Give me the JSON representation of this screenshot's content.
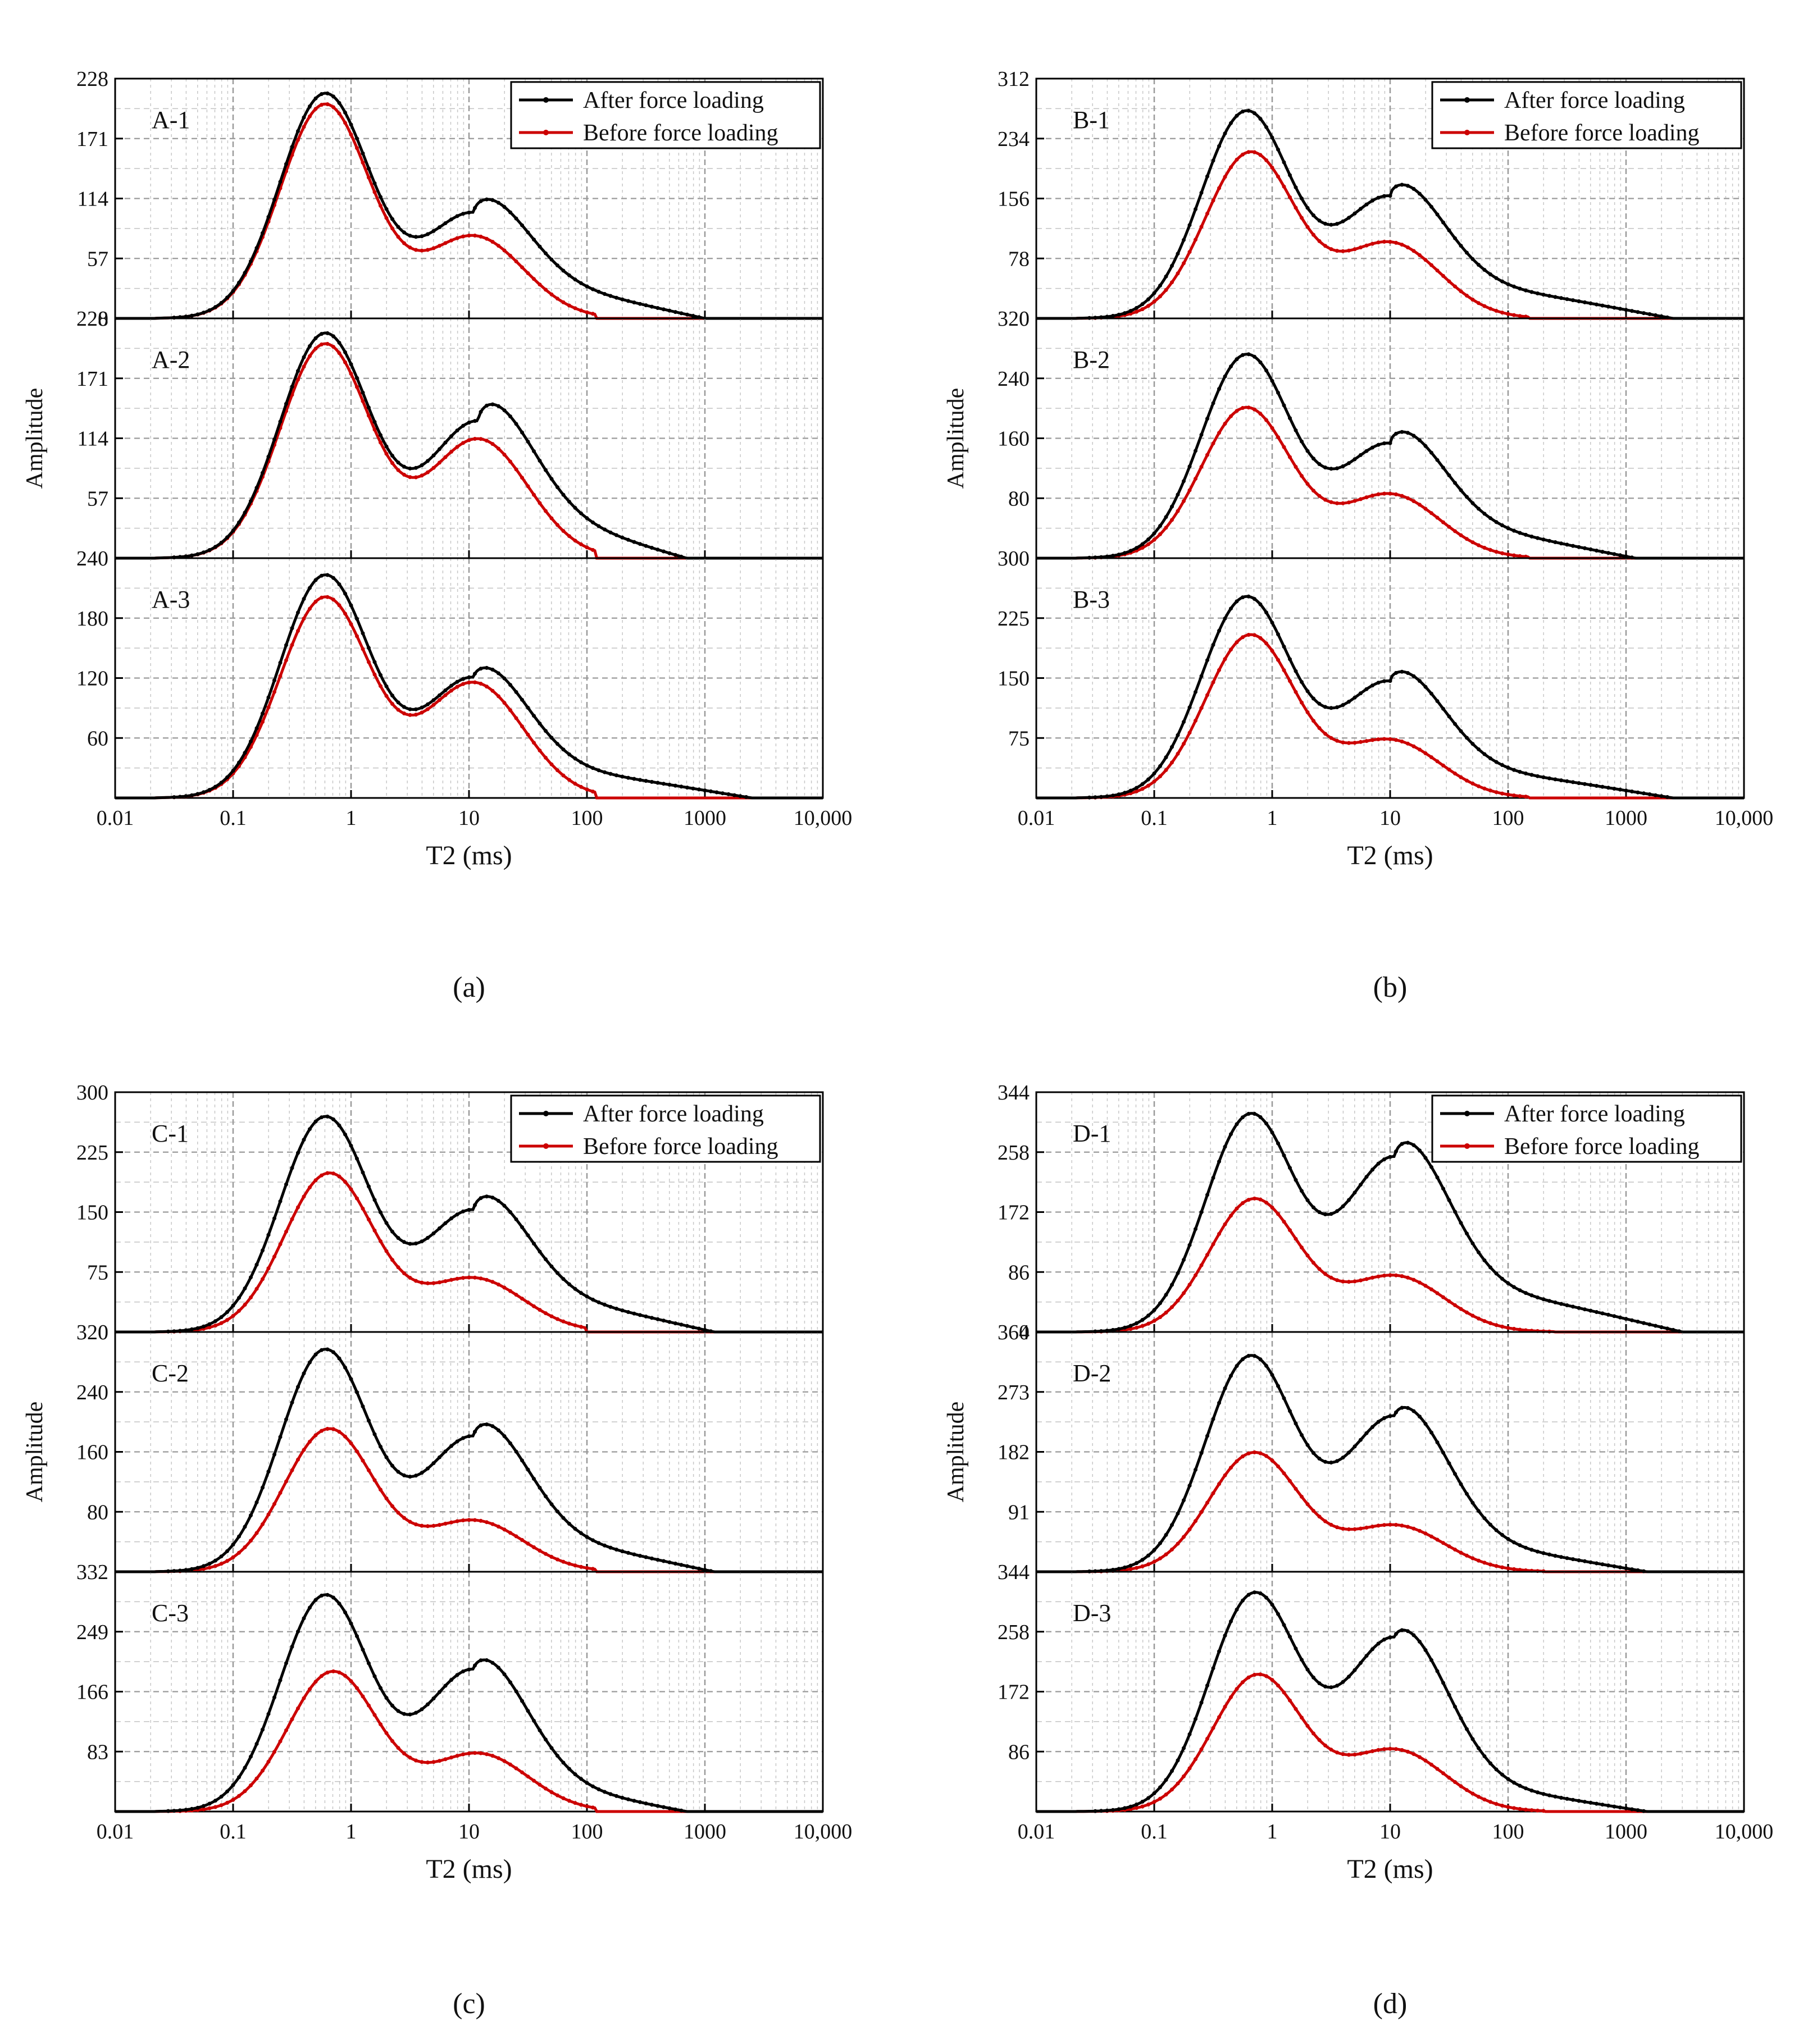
{
  "figure": {
    "x_axis_label": "T2 (ms)",
    "y_axis_label": "Amplitude",
    "x_tick_labels": [
      "0.01",
      "0.1",
      "1",
      "10",
      "100",
      "1000",
      "10,000"
    ],
    "legend": {
      "after": "After force loading",
      "before": "Before force loading"
    },
    "colors": {
      "after": "#000000",
      "before": "#cc0000",
      "grid": "#9a9a9a",
      "axis": "#000000"
    }
  },
  "chart_data": [
    {
      "type": "line",
      "group": "a",
      "caption": "(a)",
      "x_scale": "log",
      "xlim": [
        0.01,
        10000
      ],
      "xlabel": "T2 (ms)",
      "ylabel": "Amplitude",
      "subplots": [
        {
          "name": "A-1",
          "ylim": [
            0,
            228
          ],
          "yticks": [
            "0",
            "57",
            "114",
            "171",
            "228"
          ],
          "series": [
            {
              "name": "After force loading",
              "peak1": {
                "t2": 0.6,
                "amp": 213
              },
              "peak2": {
                "t2": 11,
                "amp": 100
              },
              "tail_amp": 30,
              "tail_end": 1000
            },
            {
              "name": "Before force loading",
              "peak1": {
                "t2": 0.6,
                "amp": 203
              },
              "peak2": {
                "t2": 11,
                "amp": 78
              },
              "tail_amp": 0,
              "tail_end": 120
            }
          ]
        },
        {
          "name": "A-2",
          "ylim": [
            0,
            228
          ],
          "yticks": [
            "0",
            "57",
            "114",
            "171",
            "228"
          ],
          "series": [
            {
              "name": "After force loading",
              "peak1": {
                "t2": 0.6,
                "amp": 213
              },
              "peak2": {
                "t2": 12,
                "amp": 130
              },
              "tail_amp": 36,
              "tail_end": 700
            },
            {
              "name": "Before force loading",
              "peak1": {
                "t2": 0.6,
                "amp": 203
              },
              "peak2": {
                "t2": 12,
                "amp": 113
              },
              "tail_amp": 0,
              "tail_end": 120
            }
          ]
        },
        {
          "name": "A-3",
          "ylim": [
            0,
            240
          ],
          "yticks": [
            "0",
            "60",
            "120",
            "180",
            "240"
          ],
          "series": [
            {
              "name": "After force loading",
              "peak1": {
                "t2": 0.6,
                "amp": 222
              },
              "peak2": {
                "t2": 11,
                "amp": 120
              },
              "tail_amp": 28,
              "tail_end": 2500
            },
            {
              "name": "Before force loading",
              "peak1": {
                "t2": 0.6,
                "amp": 200
              },
              "peak2": {
                "t2": 11,
                "amp": 115
              },
              "tail_amp": 0,
              "tail_end": 120
            }
          ]
        }
      ]
    },
    {
      "type": "line",
      "group": "b",
      "caption": "(b)",
      "x_scale": "log",
      "xlim": [
        0.01,
        10000
      ],
      "xlabel": "T2 (ms)",
      "ylabel": "Amplitude",
      "subplots": [
        {
          "name": "B-1",
          "ylim": [
            0,
            312
          ],
          "yticks": [
            "0",
            "78",
            "156",
            "234",
            "312"
          ],
          "series": [
            {
              "name": "After force loading",
              "peak1": {
                "t2": 0.6,
                "amp": 268
              },
              "peak2": {
                "t2": 10,
                "amp": 158
              },
              "tail_amp": 42,
              "tail_end": 2500
            },
            {
              "name": "Before force loading",
              "peak1": {
                "t2": 0.65,
                "amp": 215
              },
              "peak2": {
                "t2": 10,
                "amp": 98
              },
              "tail_amp": 0,
              "tail_end": 150
            }
          ]
        },
        {
          "name": "B-2",
          "ylim": [
            0,
            320
          ],
          "yticks": [
            "0",
            "80",
            "160",
            "240",
            "320"
          ],
          "series": [
            {
              "name": "After force loading",
              "peak1": {
                "t2": 0.6,
                "amp": 270
              },
              "peak2": {
                "t2": 10,
                "amp": 152
              },
              "tail_amp": 40,
              "tail_end": 1200
            },
            {
              "name": "Before force loading",
              "peak1": {
                "t2": 0.6,
                "amp": 200
              },
              "peak2": {
                "t2": 10,
                "amp": 85
              },
              "tail_amp": 0,
              "tail_end": 150
            }
          ]
        },
        {
          "name": "B-3",
          "ylim": [
            0,
            300
          ],
          "yticks": [
            "0",
            "75",
            "150",
            "225",
            "300"
          ],
          "series": [
            {
              "name": "After force loading",
              "peak1": {
                "t2": 0.6,
                "amp": 250
              },
              "peak2": {
                "t2": 10,
                "amp": 145
              },
              "tail_amp": 35,
              "tail_end": 2500
            },
            {
              "name": "Before force loading",
              "peak1": {
                "t2": 0.65,
                "amp": 203
              },
              "peak2": {
                "t2": 10,
                "amp": 72
              },
              "tail_amp": 0,
              "tail_end": 150
            }
          ]
        }
      ]
    },
    {
      "type": "line",
      "group": "c",
      "caption": "(c)",
      "x_scale": "log",
      "xlim": [
        0.01,
        10000
      ],
      "xlabel": "T2 (ms)",
      "ylabel": "Amplitude",
      "subplots": [
        {
          "name": "C-1",
          "ylim": [
            0,
            300
          ],
          "yticks": [
            "0",
            "75",
            "150",
            "225",
            "300"
          ],
          "series": [
            {
              "name": "After force loading",
              "peak1": {
                "t2": 0.6,
                "amp": 268
              },
              "peak2": {
                "t2": 11,
                "amp": 152
              },
              "tail_amp": 42,
              "tail_end": 1200
            },
            {
              "name": "Before force loading",
              "peak1": {
                "t2": 0.65,
                "amp": 198
              },
              "peak2": {
                "t2": 11,
                "amp": 67
              },
              "tail_amp": 0,
              "tail_end": 100
            }
          ]
        },
        {
          "name": "C-2",
          "ylim": [
            0,
            320
          ],
          "yticks": [
            "0",
            "80",
            "160",
            "240",
            "320"
          ],
          "series": [
            {
              "name": "After force loading",
              "peak1": {
                "t2": 0.6,
                "amp": 295
              },
              "peak2": {
                "t2": 11,
                "amp": 180
              },
              "tail_amp": 42,
              "tail_end": 1200
            },
            {
              "name": "Before force loading",
              "peak1": {
                "t2": 0.65,
                "amp": 190
              },
              "peak2": {
                "t2": 11,
                "amp": 68
              },
              "tail_amp": 0,
              "tail_end": 120
            }
          ]
        },
        {
          "name": "C-3",
          "ylim": [
            0,
            332
          ],
          "yticks": [
            "0",
            "83",
            "166",
            "249",
            "332"
          ],
          "series": [
            {
              "name": "After force loading",
              "peak1": {
                "t2": 0.6,
                "amp": 298
              },
              "peak2": {
                "t2": 11,
                "amp": 196
              },
              "tail_amp": 35,
              "tail_end": 700
            },
            {
              "name": "Before force loading",
              "peak1": {
                "t2": 0.7,
                "amp": 193
              },
              "peak2": {
                "t2": 12,
                "amp": 80
              },
              "tail_amp": 0,
              "tail_end": 120
            }
          ]
        }
      ]
    },
    {
      "type": "line",
      "group": "d",
      "caption": "(d)",
      "x_scale": "log",
      "xlim": [
        0.01,
        10000
      ],
      "xlabel": "T2 (ms)",
      "ylabel": "Amplitude",
      "subplots": [
        {
          "name": "D-1",
          "ylim": [
            0,
            344
          ],
          "yticks": [
            "0",
            "86",
            "172",
            "258",
            "344"
          ],
          "series": [
            {
              "name": "After force loading",
              "peak1": {
                "t2": 0.65,
                "amp": 310
              },
              "peak2": {
                "t2": 11,
                "amp": 250
              },
              "tail_amp": 60,
              "tail_end": 3000
            },
            {
              "name": "Before force loading",
              "peak1": {
                "t2": 0.7,
                "amp": 190
              },
              "peak2": {
                "t2": 11,
                "amp": 80
              },
              "tail_amp": 0,
              "tail_end": 250
            }
          ]
        },
        {
          "name": "D-2",
          "ylim": [
            0,
            364
          ],
          "yticks": [
            "0",
            "91",
            "182",
            "273",
            "364"
          ],
          "series": [
            {
              "name": "After force loading",
              "peak1": {
                "t2": 0.65,
                "amp": 325
              },
              "peak2": {
                "t2": 11,
                "amp": 235
              },
              "tail_amp": 40,
              "tail_end": 1500
            },
            {
              "name": "Before force loading",
              "peak1": {
                "t2": 0.7,
                "amp": 180
              },
              "peak2": {
                "t2": 11,
                "amp": 70
              },
              "tail_amp": 0,
              "tail_end": 200
            }
          ]
        },
        {
          "name": "D-3",
          "ylim": [
            0,
            344
          ],
          "yticks": [
            "0",
            "86",
            "172",
            "258",
            "344"
          ],
          "series": [
            {
              "name": "After force loading",
              "peak1": {
                "t2": 0.7,
                "amp": 310
              },
              "peak2": {
                "t2": 11,
                "amp": 248
              },
              "tail_amp": 35,
              "tail_end": 1500
            },
            {
              "name": "Before force loading",
              "peak1": {
                "t2": 0.75,
                "amp": 195
              },
              "peak2": {
                "t2": 11,
                "amp": 88
              },
              "tail_amp": 0,
              "tail_end": 200
            }
          ]
        }
      ]
    }
  ]
}
